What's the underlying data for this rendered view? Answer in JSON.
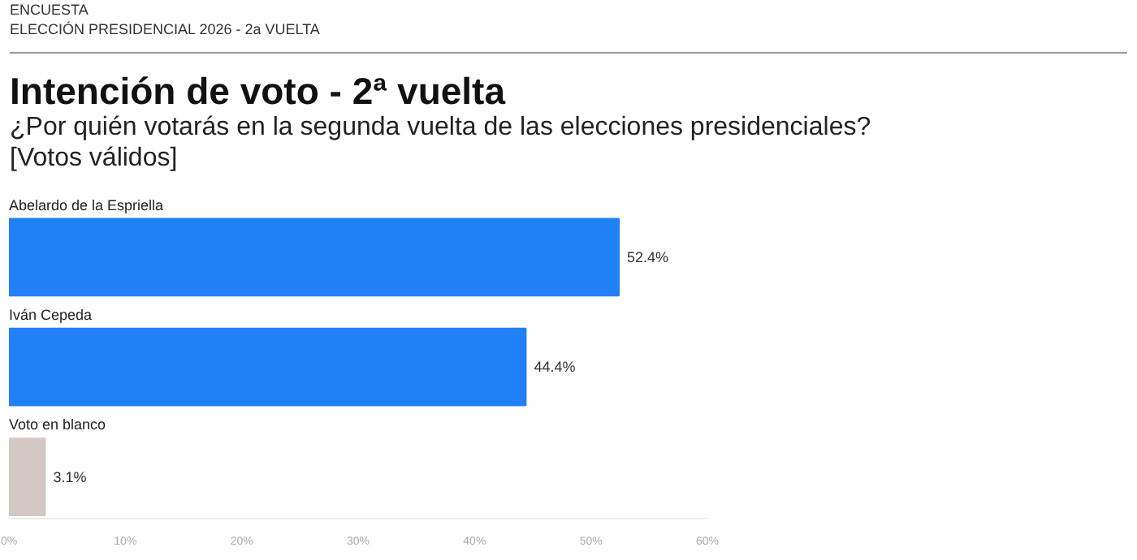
{
  "chart_data": {
    "type": "bar",
    "orientation": "horizontal",
    "title": "Intención de voto - 2ª vuelta",
    "subtitle": "¿Por quién votarás en la segunda vuelta de las elecciones presidenciales? [Votos válidos]",
    "annotations": [
      "ENCUESTA",
      "ELECCIÓN PRESIDENCIAL 2026 - 2a VUELTA"
    ],
    "categories": [
      "Abelardo de la Espriella",
      "Iván Cepeda",
      "Voto en blanco"
    ],
    "values": [
      52.4,
      44.4,
      3.1
    ],
    "colors": [
      "#2280f7",
      "#2280f7",
      "#d3c8c3"
    ],
    "value_labels": [
      "52.4%",
      "44.4%",
      "3.1%"
    ],
    "xlim": [
      0,
      60
    ],
    "xticks": [
      {
        "value": 0,
        "label": "0%"
      },
      {
        "value": 10,
        "label": "10%"
      },
      {
        "value": 20,
        "label": "20%"
      },
      {
        "value": 30,
        "label": "30%"
      },
      {
        "value": 40,
        "label": "40%"
      },
      {
        "value": 50,
        "label": "50%"
      },
      {
        "value": 60,
        "label": "60%"
      }
    ],
    "grid": false
  }
}
